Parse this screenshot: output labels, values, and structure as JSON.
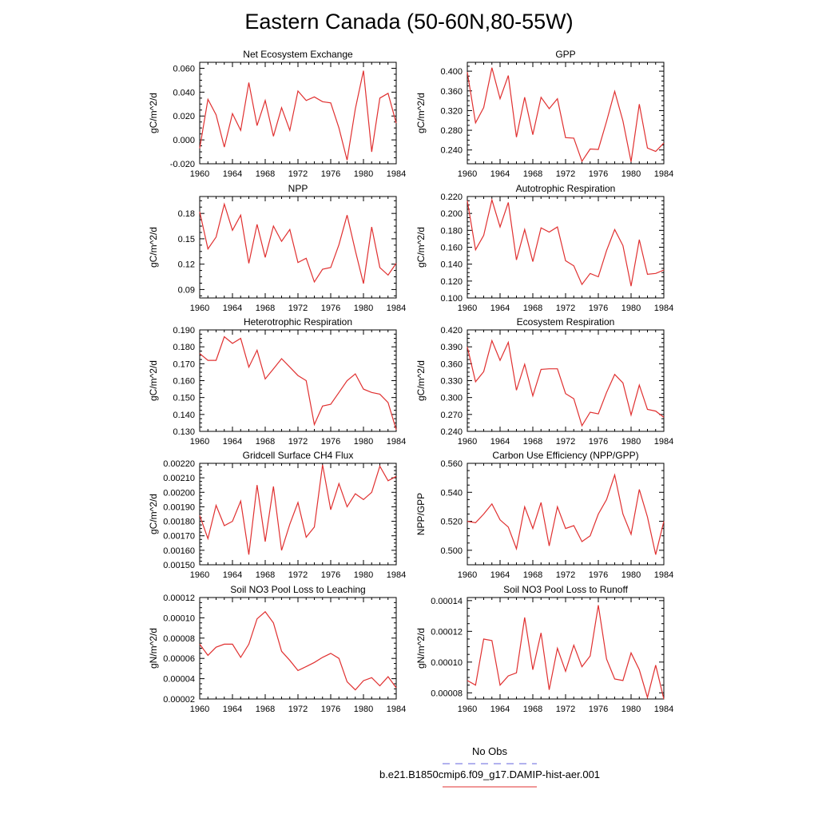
{
  "title": "Eastern Canada (50-60N,80-55W)",
  "legend": [
    {
      "label": "No Obs",
      "color": "#6666dd",
      "dash": true
    },
    {
      "label": "b.e21.B1850cmip6.f09_g17.DAMIP-hist-aer.001",
      "color": "#e03030",
      "dash": false
    }
  ],
  "chart_data": [
    {
      "type": "line",
      "title": "Net Ecosystem Exchange",
      "ylabel": "gC/m^2/d",
      "xlabel": "",
      "xlim": [
        1960,
        1984
      ],
      "ylim": [
        -0.02,
        0.065
      ],
      "xticks": [
        "1960",
        "1964",
        "1968",
        "1972",
        "1976",
        "1980",
        "1984"
      ],
      "yticks": [
        "-0.020",
        "0.000",
        "0.020",
        "0.040",
        "0.060"
      ],
      "series": [
        {
          "color": "#e03030",
          "x": [
            1960,
            1961,
            1962,
            1963,
            1964,
            1965,
            1966,
            1967,
            1968,
            1969,
            1970,
            1971,
            1972,
            1973,
            1974,
            1975,
            1976,
            1977,
            1978,
            1979,
            1980,
            1981,
            1982,
            1983,
            1984
          ],
          "values": [
            -0.007,
            0.034,
            0.021,
            -0.006,
            0.022,
            0.008,
            0.048,
            0.012,
            0.033,
            0.003,
            0.027,
            0.008,
            0.041,
            0.033,
            0.036,
            0.032,
            0.031,
            0.01,
            -0.017,
            0.026,
            0.058,
            -0.01,
            0.035,
            0.039,
            0.014
          ]
        }
      ]
    },
    {
      "type": "line",
      "title": "GPP",
      "ylabel": "gC/m^2/d",
      "xlabel": "",
      "xlim": [
        1960,
        1984
      ],
      "ylim": [
        0.212,
        0.418
      ],
      "xticks": [
        "1960",
        "1964",
        "1968",
        "1972",
        "1976",
        "1980",
        "1984"
      ],
      "yticks": [
        "0.240",
        "0.280",
        "0.320",
        "0.360",
        "0.400"
      ],
      "series": [
        {
          "color": "#e03030",
          "x": [
            1960,
            1961,
            1962,
            1963,
            1964,
            1965,
            1966,
            1967,
            1968,
            1969,
            1970,
            1971,
            1972,
            1973,
            1974,
            1975,
            1976,
            1977,
            1978,
            1979,
            1980,
            1981,
            1982,
            1983,
            1984
          ],
          "values": [
            0.398,
            0.295,
            0.326,
            0.407,
            0.344,
            0.391,
            0.266,
            0.347,
            0.271,
            0.347,
            0.324,
            0.344,
            0.265,
            0.264,
            0.217,
            0.242,
            0.241,
            0.298,
            0.359,
            0.299,
            0.216,
            0.333,
            0.244,
            0.237,
            0.254
          ]
        }
      ]
    },
    {
      "type": "line",
      "title": "NPP",
      "ylabel": "gC/m^2/d",
      "xlabel": "",
      "xlim": [
        1960,
        1984
      ],
      "ylim": [
        0.08,
        0.2
      ],
      "xticks": [
        "1960",
        "1964",
        "1968",
        "1972",
        "1976",
        "1980",
        "1984"
      ],
      "yticks": [
        "0.09",
        "0.12",
        "0.15",
        "0.18"
      ],
      "series": [
        {
          "color": "#e03030",
          "x": [
            1960,
            1961,
            1962,
            1963,
            1964,
            1965,
            1966,
            1967,
            1968,
            1969,
            1970,
            1971,
            1972,
            1973,
            1974,
            1975,
            1976,
            1977,
            1978,
            1979,
            1980,
            1981,
            1982,
            1983,
            1984
          ],
          "values": [
            0.182,
            0.138,
            0.152,
            0.191,
            0.16,
            0.178,
            0.121,
            0.167,
            0.128,
            0.165,
            0.147,
            0.161,
            0.122,
            0.127,
            0.099,
            0.114,
            0.116,
            0.143,
            0.178,
            0.136,
            0.097,
            0.164,
            0.116,
            0.107,
            0.121
          ]
        }
      ]
    },
    {
      "type": "line",
      "title": "Autotrophic Respiration",
      "ylabel": "gC/m^2/d",
      "xlabel": "",
      "xlim": [
        1960,
        1984
      ],
      "ylim": [
        0.1,
        0.22
      ],
      "xticks": [
        "1960",
        "1964",
        "1968",
        "1972",
        "1976",
        "1980",
        "1984"
      ],
      "yticks": [
        "0.100",
        "0.120",
        "0.140",
        "0.160",
        "0.180",
        "0.200",
        "0.220"
      ],
      "series": [
        {
          "color": "#e03030",
          "x": [
            1960,
            1961,
            1962,
            1963,
            1964,
            1965,
            1966,
            1967,
            1968,
            1969,
            1970,
            1971,
            1972,
            1973,
            1974,
            1975,
            1976,
            1977,
            1978,
            1979,
            1980,
            1981,
            1982,
            1983,
            1984
          ],
          "values": [
            0.215,
            0.157,
            0.174,
            0.216,
            0.184,
            0.213,
            0.145,
            0.181,
            0.143,
            0.183,
            0.178,
            0.184,
            0.144,
            0.138,
            0.116,
            0.129,
            0.125,
            0.156,
            0.181,
            0.162,
            0.114,
            0.169,
            0.128,
            0.129,
            0.133
          ]
        }
      ]
    },
    {
      "type": "line",
      "title": "Heterotrophic Respiration",
      "ylabel": "gC/m^2/d",
      "xlabel": "",
      "xlim": [
        1960,
        1984
      ],
      "ylim": [
        0.13,
        0.19
      ],
      "xticks": [
        "1960",
        "1964",
        "1968",
        "1972",
        "1976",
        "1980",
        "1984"
      ],
      "yticks": [
        "0.130",
        "0.140",
        "0.150",
        "0.160",
        "0.170",
        "0.180",
        "0.190"
      ],
      "series": [
        {
          "color": "#e03030",
          "x": [
            1960,
            1961,
            1962,
            1963,
            1964,
            1965,
            1966,
            1967,
            1968,
            1969,
            1970,
            1971,
            1972,
            1973,
            1974,
            1975,
            1976,
            1977,
            1978,
            1979,
            1980,
            1981,
            1982,
            1983,
            1984
          ],
          "values": [
            0.176,
            0.172,
            0.172,
            0.186,
            0.182,
            0.185,
            0.168,
            0.178,
            0.161,
            0.167,
            0.173,
            0.168,
            0.163,
            0.16,
            0.134,
            0.145,
            0.146,
            0.153,
            0.16,
            0.164,
            0.155,
            0.153,
            0.152,
            0.147,
            0.131
          ]
        }
      ]
    },
    {
      "type": "line",
      "title": "Ecosystem Respiration",
      "ylabel": "gC/m^2/d",
      "xlabel": "",
      "xlim": [
        1960,
        1984
      ],
      "ylim": [
        0.24,
        0.42
      ],
      "xticks": [
        "1960",
        "1964",
        "1968",
        "1972",
        "1976",
        "1980",
        "1984"
      ],
      "yticks": [
        "0.240",
        "0.270",
        "0.300",
        "0.330",
        "0.360",
        "0.390",
        "0.420"
      ],
      "series": [
        {
          "color": "#e03030",
          "x": [
            1960,
            1961,
            1962,
            1963,
            1964,
            1965,
            1966,
            1967,
            1968,
            1969,
            1970,
            1971,
            1972,
            1973,
            1974,
            1975,
            1976,
            1977,
            1978,
            1979,
            1980,
            1981,
            1982,
            1983,
            1984
          ],
          "values": [
            0.39,
            0.328,
            0.346,
            0.401,
            0.366,
            0.398,
            0.313,
            0.359,
            0.303,
            0.35,
            0.351,
            0.351,
            0.307,
            0.298,
            0.25,
            0.274,
            0.271,
            0.309,
            0.341,
            0.326,
            0.269,
            0.322,
            0.279,
            0.276,
            0.265
          ]
        }
      ]
    },
    {
      "type": "line",
      "title": "Gridcell Surface CH4 Flux",
      "ylabel": "gC/m^2/d",
      "xlabel": "",
      "xlim": [
        1960,
        1984
      ],
      "ylim": [
        0.0015,
        0.0022
      ],
      "xticks": [
        "1960",
        "1964",
        "1968",
        "1972",
        "1976",
        "1980",
        "1984"
      ],
      "yticks": [
        "0.00150",
        "0.00160",
        "0.00170",
        "0.00180",
        "0.00190",
        "0.00200",
        "0.00210",
        "0.00220"
      ],
      "series": [
        {
          "color": "#e03030",
          "x": [
            1960,
            1961,
            1962,
            1963,
            1964,
            1965,
            1966,
            1967,
            1968,
            1969,
            1970,
            1971,
            1972,
            1973,
            1974,
            1975,
            1976,
            1977,
            1978,
            1979,
            1980,
            1981,
            1982,
            1983,
            1984
          ],
          "values": [
            0.00184,
            0.00168,
            0.00191,
            0.00177,
            0.0018,
            0.00194,
            0.00157,
            0.00205,
            0.00166,
            0.00204,
            0.0016,
            0.00178,
            0.00193,
            0.00169,
            0.00176,
            0.00219,
            0.00188,
            0.00206,
            0.0019,
            0.00199,
            0.00195,
            0.002,
            0.00218,
            0.00208,
            0.00211
          ]
        }
      ]
    },
    {
      "type": "line",
      "title": "Carbon Use Efficiency (NPP/GPP)",
      "ylabel": "NPP/GPP",
      "xlabel": "",
      "xlim": [
        1960,
        1984
      ],
      "ylim": [
        0.49,
        0.56
      ],
      "xticks": [
        "1960",
        "1964",
        "1968",
        "1972",
        "1976",
        "1980",
        "1984"
      ],
      "yticks": [
        "0.500",
        "0.520",
        "0.540",
        "0.560"
      ],
      "series": [
        {
          "color": "#e03030",
          "x": [
            1960,
            1961,
            1962,
            1963,
            1964,
            1965,
            1966,
            1967,
            1968,
            1969,
            1970,
            1971,
            1972,
            1973,
            1974,
            1975,
            1976,
            1977,
            1978,
            1979,
            1980,
            1981,
            1982,
            1983,
            1984
          ],
          "values": [
            0.52,
            0.519,
            0.525,
            0.532,
            0.521,
            0.516,
            0.501,
            0.53,
            0.515,
            0.533,
            0.503,
            0.53,
            0.515,
            0.517,
            0.506,
            0.51,
            0.525,
            0.535,
            0.552,
            0.525,
            0.511,
            0.542,
            0.523,
            0.497,
            0.52
          ]
        }
      ]
    },
    {
      "type": "line",
      "title": "Soil NO3 Pool Loss to Leaching",
      "ylabel": "gN/m^2/d",
      "xlabel": "",
      "xlim": [
        1960,
        1984
      ],
      "ylim": [
        2e-05,
        0.00012
      ],
      "xticks": [
        "1960",
        "1964",
        "1968",
        "1972",
        "1976",
        "1980",
        "1984"
      ],
      "yticks": [
        "0.00002",
        "0.00004",
        "0.00006",
        "0.00008",
        "0.00010",
        "0.00012"
      ],
      "series": [
        {
          "color": "#e03030",
          "x": [
            1960,
            1961,
            1962,
            1963,
            1964,
            1965,
            1966,
            1967,
            1968,
            1969,
            1970,
            1971,
            1972,
            1973,
            1974,
            1975,
            1976,
            1977,
            1978,
            1979,
            1980,
            1981,
            1982,
            1983,
            1984
          ],
          "values": [
            7.4e-05,
            6.3e-05,
            7.1e-05,
            7.4e-05,
            7.4e-05,
            6.1e-05,
            7.4e-05,
            9.9e-05,
            0.000106,
            9.5e-05,
            6.7e-05,
            5.8e-05,
            4.8e-05,
            5.2e-05,
            5.6e-05,
            6.1e-05,
            6.5e-05,
            6e-05,
            3.7e-05,
            2.9e-05,
            3.8e-05,
            4.1e-05,
            3.3e-05,
            4.2e-05,
            3.1e-05
          ]
        }
      ]
    },
    {
      "type": "line",
      "title": "Soil NO3 Pool Loss to Runoff",
      "ylabel": "gN/m^2/d",
      "xlabel": "",
      "xlim": [
        1960,
        1984
      ],
      "ylim": [
        7.6e-05,
        0.000142
      ],
      "xticks": [
        "1960",
        "1964",
        "1968",
        "1972",
        "1976",
        "1980",
        "1984"
      ],
      "yticks": [
        "0.00008",
        "0.00010",
        "0.00012",
        "0.00014"
      ],
      "series": [
        {
          "color": "#e03030",
          "x": [
            1960,
            1961,
            1962,
            1963,
            1964,
            1965,
            1966,
            1967,
            1968,
            1969,
            1970,
            1971,
            1972,
            1973,
            1974,
            1975,
            1976,
            1977,
            1978,
            1979,
            1980,
            1981,
            1982,
            1983,
            1984
          ],
          "values": [
            8.8e-05,
            8.5e-05,
            0.000115,
            0.000114,
            8.5e-05,
            9.1e-05,
            9.3e-05,
            0.000129,
            9.5e-05,
            0.000119,
            8.2e-05,
            0.000109,
            9.4e-05,
            0.000111,
            9.7e-05,
            0.000104,
            0.000137,
            0.000102,
            8.9e-05,
            8.8e-05,
            0.000106,
            9.5e-05,
            7.7e-05,
            9.8e-05,
            7.6e-05
          ]
        }
      ]
    }
  ]
}
